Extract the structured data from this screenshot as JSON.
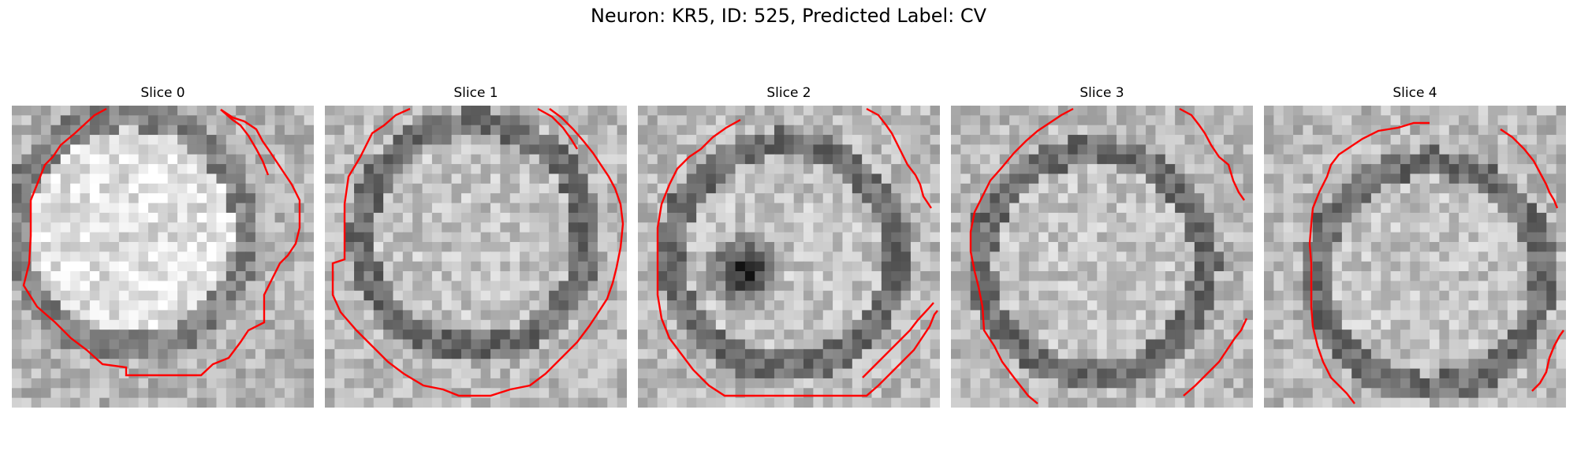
{
  "figure": {
    "title": "Neuron: KR5, ID: 525, Predicted Label: CV",
    "contour_color": "#ff0000",
    "colormap": "grayscale"
  },
  "slices": [
    {
      "label": "Slice 0",
      "texture": "bright-soma-dark-rim"
    },
    {
      "label": "Slice 1",
      "texture": "mid-gray-soma-dark-rim"
    },
    {
      "label": "Slice 2",
      "texture": "soma-with-dark-center-spot"
    },
    {
      "label": "Slice 3",
      "texture": "mid-gray-soma-dark-rim"
    },
    {
      "label": "Slice 4",
      "texture": "mid-gray-soma-dark-rim"
    }
  ]
}
